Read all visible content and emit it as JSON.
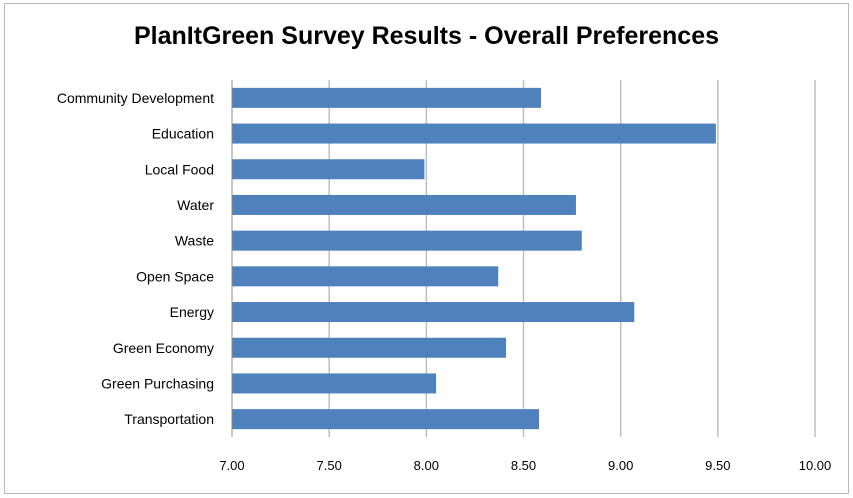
{
  "chart_data": {
    "type": "bar",
    "orientation": "horizontal",
    "title": "PlanItGreen Survey Results - Overall  Preferences",
    "categories": [
      "Community Development",
      "Education",
      "Local Food",
      "Water",
      "Waste",
      "Open Space",
      "Energy",
      "Green Economy",
      "Green Purchasing",
      "Transportation"
    ],
    "values": [
      8.59,
      9.49,
      7.99,
      8.77,
      8.8,
      8.37,
      9.07,
      8.41,
      8.05,
      8.58
    ],
    "xlim": [
      7.0,
      10.0
    ],
    "xticks": [
      "7.00",
      "7.50",
      "8.00",
      "8.50",
      "9.00",
      "9.50",
      "10.00"
    ],
    "xlabel": "",
    "ylabel": "",
    "grid": "vertical",
    "bar_color": "#4f81bd",
    "grid_color": "#bfbfbf",
    "legend": "none"
  }
}
